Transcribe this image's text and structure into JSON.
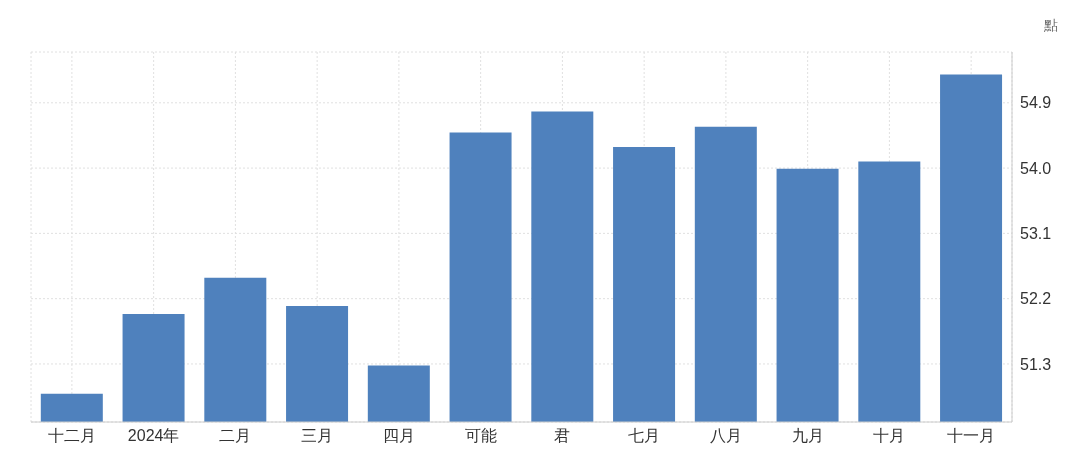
{
  "chart_data": {
    "type": "bar",
    "ylabel": "點",
    "categories": [
      "十二月",
      "2024年",
      "二月",
      "三月",
      "四月",
      "可能",
      "君",
      "七月",
      "八月",
      "九月",
      "十月",
      "十一月"
    ],
    "values": [
      50.89,
      51.99,
      52.49,
      52.1,
      51.28,
      54.49,
      54.78,
      54.29,
      54.57,
      53.99,
      54.09,
      55.29
    ],
    "color": "#4f81bd",
    "ylim": [
      50.5,
      55.6
    ],
    "yticks": [
      51.3,
      52.2,
      53.1,
      {
        "value": 54,
        "label": "54.0"
      },
      54.9
    ],
    "grid": true
  }
}
